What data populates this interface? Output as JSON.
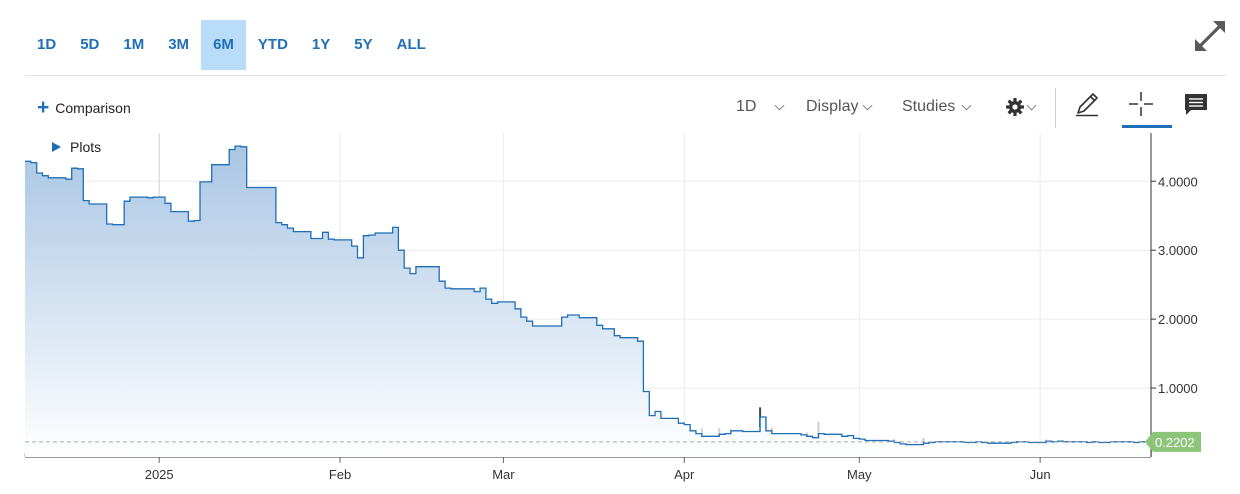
{
  "toolbar": {
    "ranges": [
      "1D",
      "5D",
      "1M",
      "3M",
      "6M",
      "YTD",
      "1Y",
      "5Y",
      "ALL"
    ],
    "active_range": "6M",
    "comparison_label": "Comparison",
    "interval_label": "1D",
    "display_label": "Display",
    "studies_label": "Studies",
    "plots_label": "Plots",
    "accent_color": "#1f6fb7",
    "active_bg": "#b9dcf8",
    "icons": [
      "expand-icon",
      "settings-icon",
      "draw-pencil-icon",
      "crosshair-icon",
      "comment-icon"
    ]
  },
  "chart_data": {
    "type": "area",
    "x_ticks": [
      "2025",
      "Feb",
      "Mar",
      "Apr",
      "May",
      "Jun"
    ],
    "y_ticks": [
      "1.0000",
      "2.0000",
      "3.0000",
      "4.0000"
    ],
    "ylim": [
      0,
      4.7
    ],
    "last_value": "0.2202",
    "last_value_color": "#8cc47a",
    "line_color": "#1f6fb7",
    "fill_top": "#a9c6e4",
    "fill_bottom": "#ffffff",
    "grid": true,
    "price_series": [
      [
        "2024-12-09",
        4.29
      ],
      [
        "2024-12-10",
        4.27
      ],
      [
        "2024-12-11",
        4.12
      ],
      [
        "2024-12-12",
        4.08
      ],
      [
        "2024-12-13",
        4.05
      ],
      [
        "2024-12-16",
        4.03
      ],
      [
        "2024-12-17",
        4.19
      ],
      [
        "2024-12-18",
        4.18
      ],
      [
        "2024-12-19",
        3.72
      ],
      [
        "2024-12-20",
        3.67
      ],
      [
        "2024-12-23",
        3.38
      ],
      [
        "2024-12-24",
        3.37
      ],
      [
        "2024-12-26",
        3.71
      ],
      [
        "2024-12-27",
        3.77
      ],
      [
        "2024-12-30",
        3.76
      ],
      [
        "2024-12-31",
        3.77
      ],
      [
        "2025-01-02",
        3.68
      ],
      [
        "2025-01-03",
        3.56
      ],
      [
        "2025-01-06",
        3.42
      ],
      [
        "2025-01-07",
        3.43
      ],
      [
        "2025-01-08",
        3.99
      ],
      [
        "2025-01-10",
        4.24
      ],
      [
        "2025-01-13",
        4.46
      ],
      [
        "2025-01-14",
        4.51
      ],
      [
        "2025-01-15",
        4.5
      ],
      [
        "2025-01-16",
        3.91
      ],
      [
        "2025-01-17",
        3.91
      ],
      [
        "2025-01-21",
        3.4
      ],
      [
        "2025-01-22",
        3.37
      ],
      [
        "2025-01-23",
        3.32
      ],
      [
        "2025-01-24",
        3.27
      ],
      [
        "2025-01-27",
        3.17
      ],
      [
        "2025-01-28",
        3.17
      ],
      [
        "2025-01-29",
        3.26
      ],
      [
        "2025-01-30",
        3.16
      ],
      [
        "2025-01-31",
        3.15
      ],
      [
        "2025-02-03",
        3.06
      ],
      [
        "2025-02-04",
        2.89
      ],
      [
        "2025-02-05",
        3.21
      ],
      [
        "2025-02-06",
        3.22
      ],
      [
        "2025-02-07",
        3.25
      ],
      [
        "2025-02-10",
        3.33
      ],
      [
        "2025-02-11",
        3.0
      ],
      [
        "2025-02-12",
        2.74
      ],
      [
        "2025-02-13",
        2.66
      ],
      [
        "2025-02-14",
        2.76
      ],
      [
        "2025-02-18",
        2.55
      ],
      [
        "2025-02-19",
        2.45
      ],
      [
        "2025-02-20",
        2.44
      ],
      [
        "2025-02-21",
        2.44
      ],
      [
        "2025-02-24",
        2.4
      ],
      [
        "2025-02-25",
        2.45
      ],
      [
        "2025-02-26",
        2.29
      ],
      [
        "2025-02-27",
        2.23
      ],
      [
        "2025-02-28",
        2.25
      ],
      [
        "2025-03-03",
        2.15
      ],
      [
        "2025-03-04",
        2.03
      ],
      [
        "2025-03-05",
        1.97
      ],
      [
        "2025-03-06",
        1.9
      ],
      [
        "2025-03-07",
        1.9
      ],
      [
        "2025-03-10",
        1.9
      ],
      [
        "2025-03-11",
        2.03
      ],
      [
        "2025-03-12",
        2.06
      ],
      [
        "2025-03-13",
        2.06
      ],
      [
        "2025-03-14",
        2.02
      ],
      [
        "2025-03-17",
        1.91
      ],
      [
        "2025-03-18",
        1.86
      ],
      [
        "2025-03-19",
        1.86
      ],
      [
        "2025-03-20",
        1.76
      ],
      [
        "2025-03-21",
        1.73
      ],
      [
        "2025-03-24",
        1.68
      ],
      [
        "2025-03-25",
        0.95
      ],
      [
        "2025-03-26",
        0.6
      ],
      [
        "2025-03-27",
        0.66
      ],
      [
        "2025-03-28",
        0.56
      ],
      [
        "2025-03-31",
        0.49
      ],
      [
        "2025-04-01",
        0.47
      ],
      [
        "2025-04-02",
        0.38
      ],
      [
        "2025-04-03",
        0.34
      ],
      [
        "2025-04-04",
        0.3
      ],
      [
        "2025-04-07",
        0.33
      ],
      [
        "2025-04-08",
        0.34
      ],
      [
        "2025-04-09",
        0.38
      ],
      [
        "2025-04-10",
        0.38
      ],
      [
        "2025-04-11",
        0.37
      ],
      [
        "2025-04-14",
        0.58
      ],
      [
        "2025-04-15",
        0.38
      ],
      [
        "2025-04-16",
        0.34
      ],
      [
        "2025-04-17",
        0.34
      ],
      [
        "2025-04-21",
        0.32
      ],
      [
        "2025-04-22",
        0.3
      ],
      [
        "2025-04-23",
        0.28
      ],
      [
        "2025-04-24",
        0.34
      ],
      [
        "2025-04-25",
        0.33
      ],
      [
        "2025-04-28",
        0.3
      ],
      [
        "2025-04-29",
        0.31
      ],
      [
        "2025-04-30",
        0.27
      ],
      [
        "2025-05-01",
        0.26
      ],
      [
        "2025-05-02",
        0.24
      ],
      [
        "2025-05-05",
        0.24
      ],
      [
        "2025-05-06",
        0.23
      ],
      [
        "2025-05-07",
        0.21
      ],
      [
        "2025-05-08",
        0.19
      ],
      [
        "2025-05-09",
        0.18
      ],
      [
        "2025-05-12",
        0.2
      ],
      [
        "2025-05-13",
        0.21
      ],
      [
        "2025-05-14",
        0.22
      ],
      [
        "2025-05-15",
        0.22
      ],
      [
        "2025-05-16",
        0.22
      ],
      [
        "2025-05-19",
        0.21
      ],
      [
        "2025-05-20",
        0.21
      ],
      [
        "2025-05-21",
        0.22
      ],
      [
        "2025-05-22",
        0.21
      ],
      [
        "2025-05-23",
        0.2
      ],
      [
        "2025-05-27",
        0.21
      ],
      [
        "2025-05-28",
        0.22
      ],
      [
        "2025-05-29",
        0.22
      ],
      [
        "2025-05-30",
        0.21
      ],
      [
        "2025-06-02",
        0.23
      ],
      [
        "2025-06-03",
        0.22
      ],
      [
        "2025-06-04",
        0.23
      ],
      [
        "2025-06-05",
        0.22
      ],
      [
        "2025-06-06",
        0.22
      ],
      [
        "2025-06-09",
        0.21
      ],
      [
        "2025-06-10",
        0.22
      ],
      [
        "2025-06-11",
        0.21
      ],
      [
        "2025-06-12",
        0.21
      ],
      [
        "2025-06-13",
        0.22
      ],
      [
        "2025-06-16",
        0.22
      ],
      [
        "2025-06-17",
        0.21
      ],
      [
        "2025-06-18",
        0.22
      ],
      [
        "2025-06-20",
        0.2202
      ]
    ],
    "volume_highlights": [
      [
        "2025-03-25",
        0.95
      ],
      [
        "2025-04-14",
        0.72
      ]
    ]
  }
}
